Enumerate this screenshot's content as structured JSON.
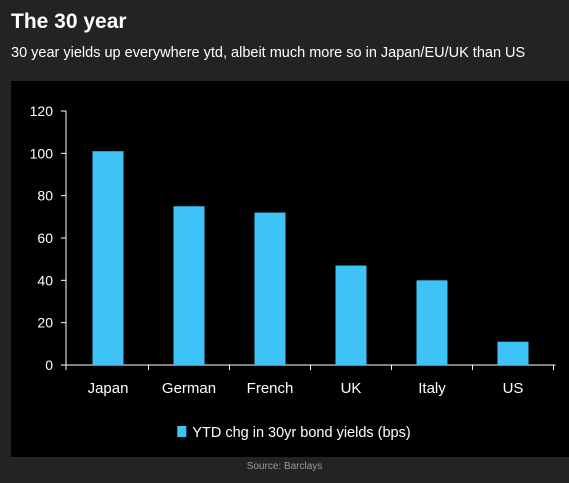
{
  "header": {
    "title": "The 30 year",
    "subtitle": "30 year yields up everywhere ytd, albeit much more so in Japan/EU/UK than US"
  },
  "footer": {
    "source": "Source: Barclays"
  },
  "colors": {
    "background": "#232323",
    "panel": "#000000",
    "bar": "#3fc3f7",
    "text": "#ffffff"
  },
  "chart_data": {
    "type": "bar",
    "title": "",
    "xlabel": "",
    "ylabel": "",
    "categories": [
      "Japan",
      "German",
      "French",
      "UK",
      "Italy",
      "US"
    ],
    "series": [
      {
        "name": "YTD chg in 30yr bond yields (bps)",
        "values": [
          101,
          75,
          72,
          47,
          40,
          11
        ]
      }
    ],
    "ylim": [
      0,
      120
    ],
    "yticks": [
      0,
      20,
      40,
      60,
      80,
      100,
      120
    ],
    "grid": false,
    "legend": "bottom-center"
  }
}
